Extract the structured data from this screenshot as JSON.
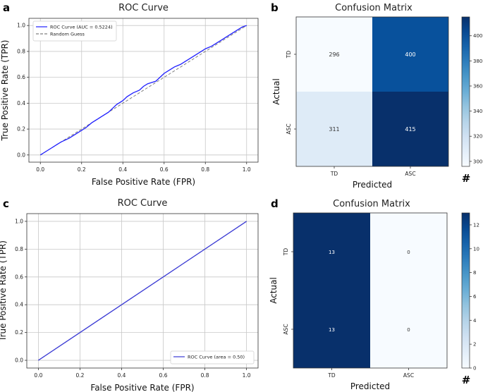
{
  "panels": [
    {
      "letter": "a"
    },
    {
      "letter": "b"
    },
    {
      "letter": "c"
    },
    {
      "letter": "d"
    }
  ],
  "chart_data": [
    {
      "type": "line",
      "panel": "a",
      "title": "ROC Curve",
      "xlabel": "False Positive Rate (FPR)",
      "ylabel": "True Positive Rate (TPR)",
      "xlim": [
        0,
        1
      ],
      "ylim": [
        0,
        1
      ],
      "xticks": [
        "0.0",
        "0.2",
        "0.4",
        "0.6",
        "0.8",
        "1.0"
      ],
      "yticks": [
        "0.0",
        "0.2",
        "0.4",
        "0.6",
        "0.8",
        "1.0"
      ],
      "grid": true,
      "legend_position": "top-left",
      "series": [
        {
          "name": "ROC Curve (AUC = 0.5224)",
          "color": "#1f1fff",
          "style": "solid",
          "x": [
            0,
            0.02,
            0.05,
            0.08,
            0.1,
            0.14,
            0.18,
            0.22,
            0.25,
            0.28,
            0.3,
            0.33,
            0.35,
            0.37,
            0.4,
            0.42,
            0.45,
            0.48,
            0.5,
            0.52,
            0.54,
            0.56,
            0.58,
            0.6,
            0.62,
            0.65,
            0.68,
            0.7,
            0.72,
            0.75,
            0.78,
            0.8,
            0.83,
            0.86,
            0.88,
            0.9,
            0.93,
            0.96,
            0.98,
            1.0
          ],
          "y": [
            0,
            0.02,
            0.05,
            0.08,
            0.1,
            0.13,
            0.17,
            0.21,
            0.25,
            0.28,
            0.3,
            0.33,
            0.36,
            0.39,
            0.42,
            0.45,
            0.48,
            0.5,
            0.53,
            0.55,
            0.56,
            0.57,
            0.6,
            0.63,
            0.65,
            0.68,
            0.7,
            0.72,
            0.74,
            0.77,
            0.8,
            0.82,
            0.84,
            0.87,
            0.89,
            0.91,
            0.94,
            0.97,
            0.99,
            1.0
          ]
        },
        {
          "name": "Random Guess",
          "color": "#808080",
          "style": "dashed",
          "x": [
            0,
            1
          ],
          "y": [
            0,
            1
          ]
        }
      ]
    },
    {
      "type": "heatmap",
      "panel": "b",
      "title": "Confusion Matrix",
      "xlabel": "Predicted",
      "ylabel": "Actual",
      "categories_x": [
        "TD",
        "ASC"
      ],
      "categories_y": [
        "TD",
        "ASC"
      ],
      "values": [
        [
          296,
          400
        ],
        [
          311,
          415
        ]
      ],
      "colorbar_range": [
        296,
        415
      ],
      "colorbar_ticks": [
        "300",
        "320",
        "340",
        "360",
        "380",
        "400"
      ],
      "colorbar_label": "#"
    },
    {
      "type": "line",
      "panel": "c",
      "title": "ROC Curve",
      "xlabel": "False Positive Rate (FPR)",
      "ylabel": "True Positive Rate (TPR)",
      "xlim": [
        0,
        1
      ],
      "ylim": [
        0,
        1
      ],
      "xticks": [
        "0.0",
        "0.2",
        "0.4",
        "0.6",
        "0.8",
        "1.0"
      ],
      "yticks": [
        "0.0",
        "0.2",
        "0.4",
        "0.6",
        "0.8",
        "1.0"
      ],
      "grid": true,
      "legend_position": "bottom-right",
      "series": [
        {
          "name": "ROC Curve (area = 0.50)",
          "color": "#3b3bd6",
          "style": "solid",
          "x": [
            0,
            1
          ],
          "y": [
            0,
            1
          ]
        },
        {
          "name": "",
          "color": "#808080",
          "style": "dashed",
          "x": [
            0,
            1
          ],
          "y": [
            0,
            1
          ]
        }
      ]
    },
    {
      "type": "heatmap",
      "panel": "d",
      "title": "Confusion Matrix",
      "xlabel": "Predicted",
      "ylabel": "Actual",
      "categories_x": [
        "TD",
        "ASC"
      ],
      "categories_y": [
        "TD",
        "ASC"
      ],
      "values": [
        [
          13,
          0
        ],
        [
          13,
          0
        ]
      ],
      "colorbar_range": [
        0,
        13
      ],
      "colorbar_ticks": [
        "0",
        "2",
        "4",
        "6",
        "8",
        "10",
        "12"
      ],
      "colorbar_label": "#"
    }
  ]
}
